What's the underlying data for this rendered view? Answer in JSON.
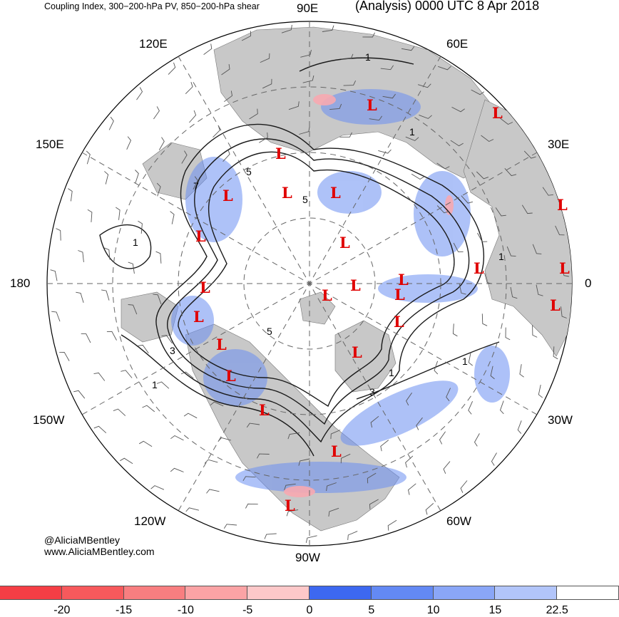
{
  "header": {
    "title_left": "Coupling Index, 300−200-hPa PV, 850−200-hPa shear",
    "title_right": "(Analysis) 0000 UTC 8 Apr 2018"
  },
  "longitude_labels": {
    "top": "90E",
    "top_right": "60E",
    "right_upper": "30E",
    "right": "0",
    "right_lower": "30W",
    "bottom_right": "60W",
    "bottom": "90W",
    "bottom_left": "120W",
    "left_lower": "150W",
    "left": "180",
    "left_upper": "150E",
    "top_left": "120E"
  },
  "credit": {
    "handle": "@AliciaMBentley",
    "website": "www.AliciaMBentley.com"
  },
  "low_pressure_symbol": "L",
  "contour_labels": [
    "1",
    "1",
    "3",
    "5",
    "5",
    "7",
    "1",
    "1",
    "3",
    "5",
    "1",
    "1",
    "1"
  ],
  "colorbar": {
    "colors": [
      "#f53e45",
      "#f7595c",
      "#f87e80",
      "#fba3a5",
      "#fdc8c9",
      "#3d68f0",
      "#6389f4",
      "#8aa6f7",
      "#b2c5fa",
      "#ffffff"
    ],
    "tick_labels": [
      "-20",
      "-15",
      "-10",
      "-5",
      "0",
      "5",
      "10",
      "15",
      "22.5"
    ]
  },
  "colors": {
    "land": "#c8c8c8",
    "contour": "#1a1a1a",
    "low_marker": "#e00000",
    "shading_blue": "#6b8ff2",
    "shading_pink": "#f7a8b0"
  }
}
